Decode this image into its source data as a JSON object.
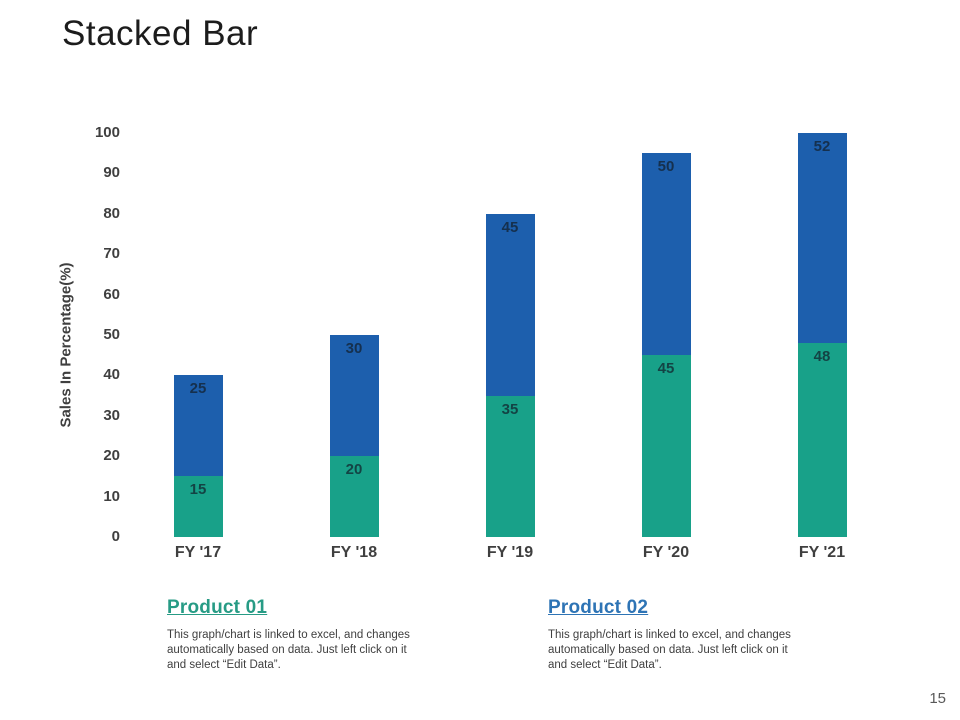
{
  "page": {
    "title": "Stacked Bar",
    "page_number": "15"
  },
  "chart_data": {
    "type": "bar",
    "stacked": true,
    "title": "Stacked Bar",
    "xlabel": "",
    "ylabel": "Sales In Percentage(%)",
    "categories": [
      "FY '17",
      "FY '18",
      "FY '19",
      "FY '20",
      "FY '21"
    ],
    "series": [
      {
        "name": "Product 01",
        "color": "#18a189",
        "values": [
          15,
          20,
          35,
          45,
          48
        ]
      },
      {
        "name": "Product 02",
        "color": "#1d5fad",
        "values": [
          25,
          30,
          45,
          50,
          52
        ]
      }
    ],
    "totals": [
      40,
      50,
      80,
      95,
      100
    ],
    "ylim": [
      0,
      100
    ],
    "yticks": [
      0,
      10,
      20,
      30,
      40,
      50,
      60,
      70,
      80,
      90,
      100
    ],
    "grid": false,
    "legend_position": "bottom"
  },
  "legend": {
    "items": [
      {
        "label": "Product 01",
        "color": "#279b85",
        "description": "This graph/chart is linked to excel, and changes automatically based on data. Just left click on it and select “Edit Data”."
      },
      {
        "label": "Product 02",
        "color": "#2e74b5",
        "description": "This graph/chart is linked to excel, and changes automatically based on data. Just left click on it and select “Edit Data”."
      }
    ]
  }
}
